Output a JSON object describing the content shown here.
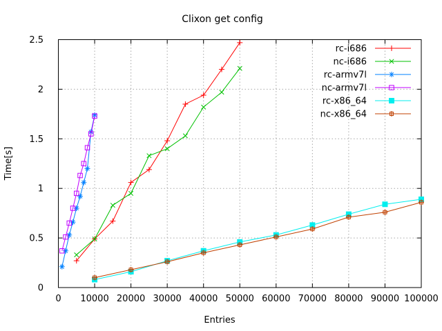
{
  "window": {
    "background": "#ffffff"
  },
  "chart_data": {
    "type": "line",
    "title": "Clixon get config",
    "xlabel": "Entries",
    "ylabel": "Time[s]",
    "xlim": [
      0,
      100000
    ],
    "ylim": [
      0,
      2.5
    ],
    "x_ticks": [
      0,
      10000,
      20000,
      30000,
      40000,
      50000,
      60000,
      70000,
      80000,
      90000,
      100000
    ],
    "x_tick_labels": [
      "0",
      "10000",
      "20000",
      "30000",
      "40000",
      "50000",
      "60000",
      "70000",
      "80000",
      "90000",
      "100000"
    ],
    "y_ticks": [
      0,
      0.5,
      1,
      1.5,
      2,
      2.5
    ],
    "y_tick_labels": [
      "0",
      "0.5",
      "1",
      "1.5",
      "2",
      "2.5"
    ],
    "grid": true,
    "grid_color": "#a6a6a6",
    "axis_color": "#000000",
    "legend_position": "top-right-inside",
    "series": [
      {
        "name": "rc-i686",
        "color": "#ff0000",
        "marker": "plus",
        "x": [
          5000,
          10000,
          15000,
          20000,
          25000,
          30000,
          35000,
          40000,
          45000,
          50000
        ],
        "y": [
          0.27,
          0.49,
          0.67,
          1.06,
          1.19,
          1.48,
          1.85,
          1.94,
          2.2,
          2.47
        ]
      },
      {
        "name": "nc-i686",
        "color": "#00c000",
        "marker": "cross",
        "x": [
          5000,
          10000,
          15000,
          20000,
          25000,
          30000,
          35000,
          40000,
          45000,
          50000
        ],
        "y": [
          0.33,
          0.49,
          0.83,
          0.95,
          1.33,
          1.4,
          1.53,
          1.82,
          1.97,
          2.21
        ]
      },
      {
        "name": "rc-armv7l",
        "color": "#0080ff",
        "marker": "asterisk",
        "x": [
          1000,
          2000,
          3000,
          4000,
          5000,
          6000,
          7000,
          8000,
          9000,
          10000
        ],
        "y": [
          0.21,
          0.37,
          0.53,
          0.66,
          0.8,
          0.92,
          1.06,
          1.2,
          1.57,
          1.74
        ]
      },
      {
        "name": "nc-armv7l",
        "color": "#c000ff",
        "marker": "open-square",
        "x": [
          1000,
          2000,
          3000,
          4000,
          5000,
          6000,
          7000,
          8000,
          9000,
          10000
        ],
        "y": [
          0.37,
          0.51,
          0.65,
          0.8,
          0.95,
          1.13,
          1.25,
          1.41,
          1.55,
          1.73
        ]
      },
      {
        "name": "rc-x86_64",
        "color": "#00eeee",
        "marker": "filled-square",
        "x": [
          10000,
          20000,
          30000,
          40000,
          50000,
          60000,
          70000,
          80000,
          90000,
          100000
        ],
        "y": [
          0.08,
          0.16,
          0.27,
          0.37,
          0.46,
          0.53,
          0.63,
          0.74,
          0.84,
          0.89
        ]
      },
      {
        "name": "nc-x86_64",
        "color": "#c04000",
        "marker": "square-plus",
        "x": [
          10000,
          20000,
          30000,
          40000,
          50000,
          60000,
          70000,
          80000,
          90000,
          100000
        ],
        "y": [
          0.1,
          0.18,
          0.26,
          0.35,
          0.43,
          0.51,
          0.59,
          0.71,
          0.76,
          0.86
        ]
      }
    ]
  }
}
